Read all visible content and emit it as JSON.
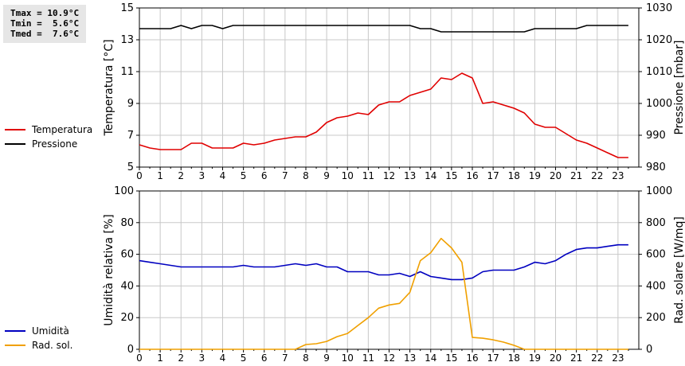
{
  "stats": [
    {
      "label": "Tmax",
      "value": "10.9°C"
    },
    {
      "label": "Tmin",
      "value": "5.6°C"
    },
    {
      "label": "Tmed",
      "value": "7.6°C"
    }
  ],
  "colors": {
    "temperature": "#e00000",
    "pressure": "#000000",
    "humidity": "#0000c0",
    "radiation": "#f0a000",
    "grid": "#c8c8c8"
  },
  "chart_data": [
    {
      "type": "line",
      "x_ticks": [
        "0",
        "1",
        "2",
        "3",
        "4",
        "5",
        "6",
        "7",
        "8",
        "9",
        "10",
        "11",
        "12",
        "13",
        "14",
        "15",
        "16",
        "17",
        "18",
        "19",
        "20",
        "21",
        "22",
        "23"
      ],
      "xlim": [
        0,
        24
      ],
      "ylabel": "Temperatura [°C]",
      "y2label": "Pressione [mbar]",
      "ylim": [
        5,
        15
      ],
      "y_ticks": [
        "5",
        "7",
        "9",
        "11",
        "13",
        "15"
      ],
      "y2lim": [
        980,
        1030
      ],
      "y2_ticks": [
        "980",
        "990",
        "1000",
        "1010",
        "1020",
        "1030"
      ],
      "grid": true,
      "legend_placement": "left",
      "series": [
        {
          "name": "Temperatura",
          "axis": "left",
          "color_key": "temperature",
          "x": [
            0,
            0.5,
            1,
            1.5,
            2,
            2.5,
            3,
            3.5,
            4,
            4.5,
            5,
            5.5,
            6,
            6.5,
            7,
            7.5,
            8,
            8.5,
            9,
            9.5,
            10,
            10.5,
            11,
            11.5,
            12,
            12.5,
            13,
            13.5,
            14,
            14.5,
            15,
            15.5,
            16,
            16.5,
            17,
            17.5,
            18,
            18.5,
            19,
            19.5,
            20,
            20.5,
            21,
            21.5,
            22,
            22.5,
            23,
            23.5
          ],
          "y": [
            6.4,
            6.2,
            6.1,
            6.1,
            6.1,
            6.5,
            6.5,
            6.2,
            6.2,
            6.2,
            6.5,
            6.4,
            6.5,
            6.7,
            6.8,
            6.9,
            6.9,
            7.2,
            7.8,
            8.1,
            8.2,
            8.4,
            8.3,
            8.9,
            9.1,
            9.1,
            9.5,
            9.7,
            9.9,
            10.6,
            10.5,
            10.9,
            10.6,
            9.0,
            9.1,
            8.9,
            8.7,
            8.4,
            7.7,
            7.5,
            7.5,
            7.1,
            6.7,
            6.5,
            6.2,
            5.9,
            5.6,
            5.6
          ]
        },
        {
          "name": "Pressione",
          "axis": "right",
          "color_key": "pressure",
          "x": [
            0,
            1,
            1.5,
            2,
            2.5,
            3,
            3.5,
            4,
            4.5,
            5,
            5.5,
            6,
            6.5,
            7,
            7.5,
            8,
            8.5,
            9,
            9.5,
            10,
            10.5,
            11,
            11.5,
            12,
            12.5,
            13,
            13.5,
            14,
            14.5,
            15,
            15.5,
            16,
            16.5,
            17,
            17.5,
            18,
            18.5,
            19,
            19.5,
            20,
            20.5,
            21,
            21.5,
            22,
            22.5,
            23,
            23.5
          ],
          "y": [
            1023.5,
            1023.5,
            1023.5,
            1024.5,
            1023.5,
            1024.5,
            1024.5,
            1023.5,
            1024.5,
            1024.5,
            1024.5,
            1024.5,
            1024.5,
            1024.5,
            1024.5,
            1024.5,
            1024.5,
            1024.5,
            1024.5,
            1024.5,
            1024.5,
            1024.5,
            1024.5,
            1024.5,
            1024.5,
            1024.5,
            1023.5,
            1023.5,
            1022.5,
            1022.5,
            1022.5,
            1022.5,
            1022.5,
            1022.5,
            1022.5,
            1022.5,
            1022.5,
            1023.5,
            1023.5,
            1023.5,
            1023.5,
            1023.5,
            1024.5,
            1024.5,
            1024.5,
            1024.5,
            1024.5
          ]
        }
      ]
    },
    {
      "type": "line",
      "x_ticks": [
        "0",
        "1",
        "2",
        "3",
        "4",
        "5",
        "6",
        "7",
        "8",
        "9",
        "10",
        "11",
        "12",
        "13",
        "14",
        "15",
        "16",
        "17",
        "18",
        "19",
        "20",
        "21",
        "22",
        "23"
      ],
      "xlim": [
        0,
        24
      ],
      "ylabel": "Umidità relativa [%]",
      "y2label": "Rad. solare [W/mq]",
      "ylim": [
        0,
        100
      ],
      "y_ticks": [
        "0",
        "20",
        "40",
        "60",
        "80",
        "100"
      ],
      "y2lim": [
        0,
        1000
      ],
      "y2_ticks": [
        "0",
        "200",
        "400",
        "600",
        "800",
        "1000"
      ],
      "grid": true,
      "legend_placement": "left",
      "series": [
        {
          "name": "Umidità",
          "axis": "left",
          "color_key": "humidity",
          "x": [
            0,
            0.5,
            1,
            1.5,
            2,
            2.5,
            3,
            3.5,
            4,
            4.5,
            5,
            5.5,
            6,
            6.5,
            7,
            7.5,
            8,
            8.5,
            9,
            9.5,
            10,
            10.5,
            11,
            11.5,
            12,
            12.5,
            13,
            13.5,
            14,
            14.5,
            15,
            15.5,
            16,
            16.5,
            17,
            17.5,
            18,
            18.5,
            19,
            19.5,
            20,
            20.5,
            21,
            21.5,
            22,
            22.5,
            23,
            23.5
          ],
          "y": [
            56,
            55,
            54,
            53,
            52,
            52,
            52,
            52,
            52,
            52,
            53,
            52,
            52,
            52,
            53,
            54,
            53,
            54,
            52,
            52,
            49,
            49,
            49,
            47,
            47,
            48,
            46,
            49,
            46,
            45,
            44,
            44,
            45,
            49,
            50,
            50,
            50,
            52,
            55,
            54,
            56,
            60,
            63,
            64,
            64,
            65,
            66,
            66
          ]
        },
        {
          "name": "Rad. sol.",
          "axis": "right",
          "color_key": "radiation",
          "x": [
            0,
            7.5,
            8,
            8.5,
            9,
            9.5,
            10,
            10.5,
            11,
            11.5,
            12,
            12.5,
            13,
            13.5,
            14,
            14.5,
            15,
            15.5,
            16,
            16.5,
            17,
            17.5,
            18,
            18.5,
            19,
            19.5,
            20,
            20.5,
            21,
            21.5,
            22,
            22.5,
            23,
            23.5
          ],
          "y": [
            0,
            0,
            30,
            35,
            50,
            80,
            100,
            150,
            200,
            260,
            280,
            290,
            360,
            560,
            610,
            700,
            640,
            550,
            75,
            70,
            60,
            45,
            25,
            0,
            0,
            0,
            0,
            0,
            0,
            0,
            0,
            0,
            0,
            0
          ]
        }
      ]
    }
  ]
}
